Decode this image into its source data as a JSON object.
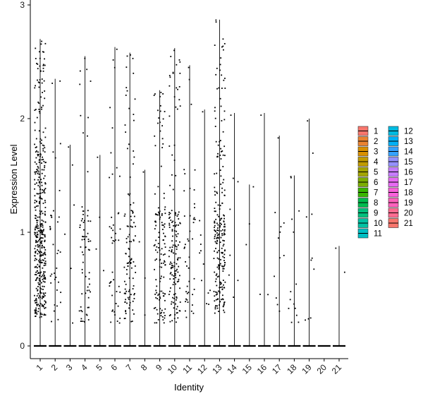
{
  "chart_data": {
    "type": "violin-jitter",
    "xlabel": "Identity",
    "ylabel": "Expression Level",
    "ylim": [
      0,
      3
    ],
    "yticks": [
      0,
      1,
      2,
      3
    ],
    "categories": [
      "1",
      "2",
      "3",
      "4",
      "5",
      "6",
      "7",
      "8",
      "9",
      "10",
      "11",
      "12",
      "13",
      "14",
      "15",
      "16",
      "17",
      "18",
      "19",
      "20",
      "21"
    ],
    "max_values": [
      2.7,
      2.35,
      1.77,
      2.55,
      1.68,
      2.63,
      2.58,
      1.55,
      2.25,
      2.62,
      2.47,
      2.08,
      2.87,
      2.05,
      1.42,
      2.05,
      1.85,
      1.5,
      2.0,
      0.0,
      0.88
    ],
    "nonzero_counts": [
      420,
      35,
      6,
      70,
      4,
      45,
      110,
      4,
      130,
      150,
      45,
      12,
      230,
      8,
      3,
      3,
      12,
      14,
      10,
      0,
      2
    ],
    "legend": {
      "entries": [
        "1",
        "2",
        "3",
        "4",
        "5",
        "6",
        "7",
        "8",
        "9",
        "10",
        "11",
        "12",
        "13",
        "14",
        "15",
        "16",
        "17",
        "18",
        "19",
        "20",
        "21"
      ],
      "colors": [
        "#F8766D",
        "#EA8331",
        "#D89000",
        "#C09B00",
        "#A3A500",
        "#7CAE00",
        "#39B600",
        "#00BB4E",
        "#00BF7D",
        "#00C1A3",
        "#00BFC4",
        "#00BAE0",
        "#00B0F6",
        "#35A2FF",
        "#9590FF",
        "#C77CFF",
        "#E76BF3",
        "#FA62DB",
        "#FF62BC",
        "#FF6C91",
        "#F8766D"
      ],
      "position": "right"
    }
  }
}
